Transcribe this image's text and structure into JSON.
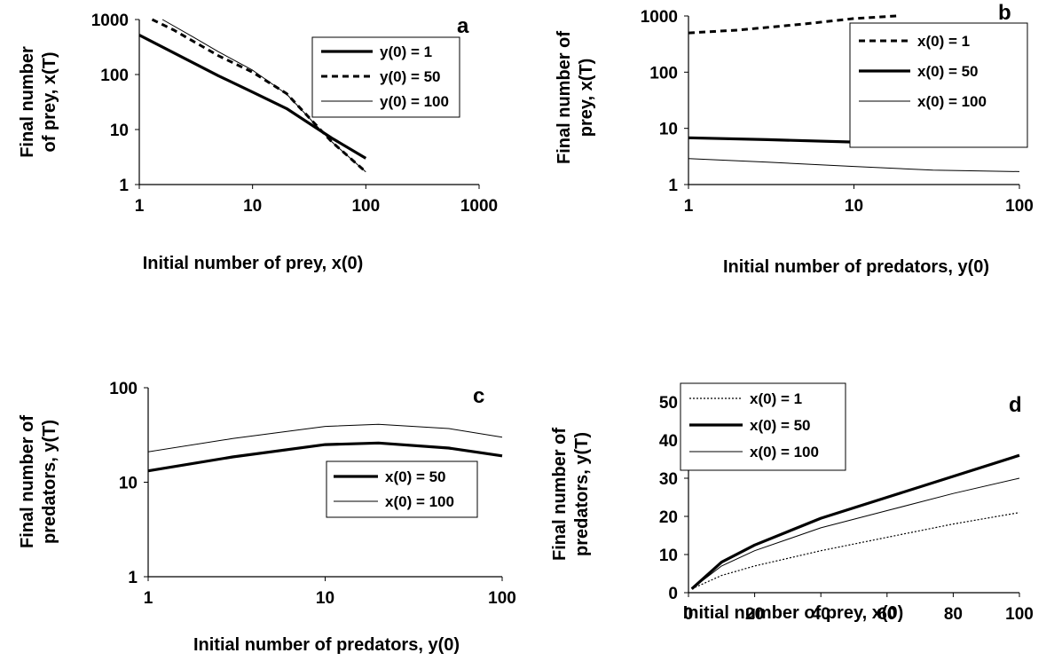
{
  "chart_data": [
    {
      "panel": "a",
      "type": "line",
      "xscale": "log",
      "yscale": "log",
      "xlim": [
        1,
        1000
      ],
      "ylim": [
        1,
        1000
      ],
      "xticks": [
        "1",
        "10",
        "100",
        "1000"
      ],
      "yticks": [
        "1",
        "10",
        "100",
        "1000"
      ],
      "xlabel": "Initial number of prey, x(0)",
      "ylabel_lines": [
        "Final number",
        "of prey, x(T)"
      ],
      "legend_position": "top-right",
      "series": [
        {
          "name": "y(0) = 1",
          "style": "thick-solid",
          "points": [
            [
              1,
              520
            ],
            [
              2,
              250
            ],
            [
              5,
              95
            ],
            [
              10,
              48
            ],
            [
              20,
              24
            ],
            [
              50,
              7
            ],
            [
              100,
              3
            ]
          ]
        },
        {
          "name": "y(0) = 50",
          "style": "dashed",
          "points": [
            [
              1.3,
              1000
            ],
            [
              2,
              650
            ],
            [
              5,
              220
            ],
            [
              10,
              110
            ],
            [
              20,
              45
            ],
            [
              50,
              6
            ],
            [
              100,
              1.7
            ]
          ]
        },
        {
          "name": "y(0) = 100",
          "style": "thin-solid",
          "points": [
            [
              1.6,
              1000
            ],
            [
              3,
              480
            ],
            [
              5,
              260
            ],
            [
              10,
              120
            ],
            [
              20,
              44
            ],
            [
              50,
              6
            ],
            [
              100,
              1.7
            ]
          ]
        }
      ]
    },
    {
      "panel": "b",
      "type": "line",
      "xscale": "log",
      "yscale": "log",
      "xlim": [
        1,
        100
      ],
      "ylim": [
        1,
        1000
      ],
      "xticks": [
        "1",
        "10",
        "100"
      ],
      "yticks": [
        "1",
        "10",
        "100",
        "1000"
      ],
      "xlabel": "Initial number of predators, y(0)",
      "ylabel_lines": [
        "Final number of",
        "prey, x(T)"
      ],
      "legend_position": "top-right",
      "series": [
        {
          "name": "x(0) = 1",
          "style": "dashed",
          "points": [
            [
              1,
              500
            ],
            [
              2,
              560
            ],
            [
              5,
              720
            ],
            [
              10,
              900
            ],
            [
              18,
              1000
            ]
          ]
        },
        {
          "name": "x(0) = 50",
          "style": "thick-solid",
          "points": [
            [
              1,
              6.8
            ],
            [
              3,
              6.3
            ],
            [
              10,
              5.7
            ],
            [
              30,
              5.2
            ],
            [
              100,
              5.8
            ]
          ]
        },
        {
          "name": "x(0) = 100",
          "style": "thin-solid",
          "points": [
            [
              1,
              2.9
            ],
            [
              3,
              2.5
            ],
            [
              10,
              2.1
            ],
            [
              30,
              1.8
            ],
            [
              100,
              1.7
            ]
          ]
        }
      ]
    },
    {
      "panel": "c",
      "type": "line",
      "xscale": "log",
      "yscale": "log",
      "xlim": [
        1,
        100
      ],
      "ylim": [
        1,
        100
      ],
      "xticks": [
        "1",
        "10",
        "100"
      ],
      "yticks": [
        "1",
        "10",
        "100"
      ],
      "xlabel": "Initial number of predators, y(0)",
      "ylabel_lines": [
        "Final number of",
        "predators, y(T)"
      ],
      "legend_position": "center-right",
      "series": [
        {
          "name": "x(0) = 50",
          "style": "thick-solid",
          "points": [
            [
              1,
              13.2
            ],
            [
              3,
              18.5
            ],
            [
              10,
              25
            ],
            [
              20,
              26
            ],
            [
              50,
              23
            ],
            [
              100,
              19
            ]
          ]
        },
        {
          "name": "x(0) = 100",
          "style": "thin-solid",
          "points": [
            [
              1,
              21
            ],
            [
              3,
              29
            ],
            [
              10,
              39
            ],
            [
              20,
              41
            ],
            [
              50,
              37
            ],
            [
              100,
              30
            ]
          ]
        }
      ]
    },
    {
      "panel": "d",
      "type": "line",
      "xscale": "linear",
      "yscale": "linear",
      "xlim": [
        0,
        100
      ],
      "ylim": [
        0,
        50
      ],
      "xticks": [
        "0",
        "20",
        "40",
        "60",
        "80",
        "100"
      ],
      "yticks": [
        "0",
        "10",
        "20",
        "30",
        "40",
        "50"
      ],
      "xlabel": "Initial number of prey, x(0)",
      "ylabel_lines": [
        "Final number of",
        "predators, y(T)"
      ],
      "legend_position": "top-left",
      "series": [
        {
          "name": "x(0) = 1",
          "style": "dotted",
          "points": [
            [
              1,
              1
            ],
            [
              10,
              4.5
            ],
            [
              20,
              7
            ],
            [
              40,
              11
            ],
            [
              60,
              14.5
            ],
            [
              80,
              18
            ],
            [
              100,
              21
            ]
          ]
        },
        {
          "name": "x(0) = 50",
          "style": "thick-solid",
          "points": [
            [
              1,
              1
            ],
            [
              10,
              8
            ],
            [
              20,
              12.5
            ],
            [
              40,
              19.5
            ],
            [
              60,
              25
            ],
            [
              80,
              30.5
            ],
            [
              100,
              36
            ]
          ]
        },
        {
          "name": "x(0) = 100",
          "style": "thin-solid",
          "points": [
            [
              1,
              1
            ],
            [
              10,
              7
            ],
            [
              20,
              11
            ],
            [
              40,
              17
            ],
            [
              60,
              21.5
            ],
            [
              80,
              26
            ],
            [
              100,
              30
            ]
          ]
        }
      ]
    }
  ]
}
